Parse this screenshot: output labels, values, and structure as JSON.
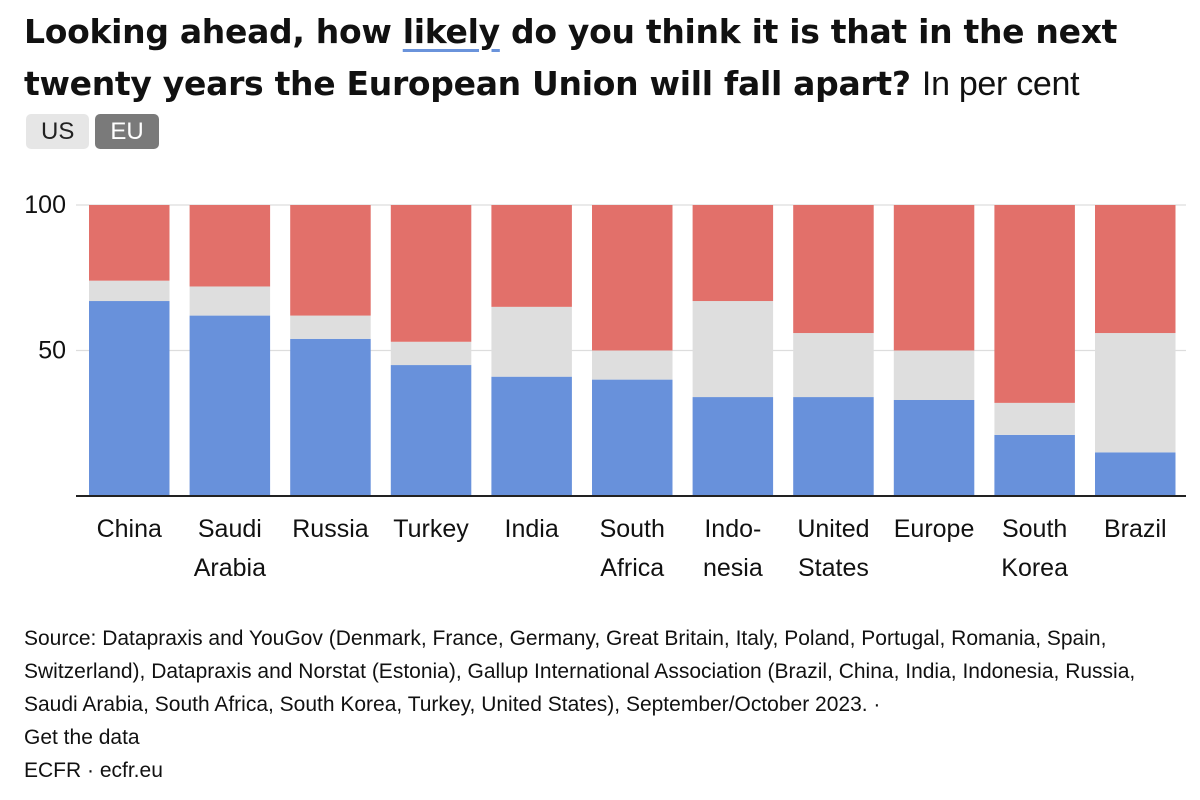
{
  "header": {
    "title_bold_1": "Looking ahead, how ",
    "title_highlight": "likely",
    "title_bold_2": " do you think it is that in the next twenty years the European Union will fall apart?",
    "subtitle": "In per cent"
  },
  "toggles": [
    {
      "label": "US",
      "selected": false
    },
    {
      "label": "EU",
      "selected": true
    }
  ],
  "colors": {
    "likely": "#6891db",
    "neither": "#dedede",
    "unlikely": "#e2706a",
    "toggle_selected": "#7a7a7a",
    "toggle_unselected": "#e6e6e6",
    "title_underline": "#6a93db"
  },
  "chart_data": {
    "type": "bar",
    "stacked": true,
    "ylim": [
      0,
      100
    ],
    "yticks": [
      "50",
      "100"
    ],
    "grid": true,
    "categories": [
      [
        "China"
      ],
      [
        "Saudi",
        "Arabia"
      ],
      [
        "Russia"
      ],
      [
        "Turkey"
      ],
      [
        "India"
      ],
      [
        "South",
        "Africa"
      ],
      [
        "Indo-",
        "nesia"
      ],
      [
        "United",
        "States"
      ],
      [
        "Europe"
      ],
      [
        "South",
        "Korea"
      ],
      [
        "Brazil"
      ]
    ],
    "series": [
      {
        "values": [
          67,
          62,
          54,
          45,
          41,
          40,
          34,
          34,
          33,
          21,
          15
        ]
      },
      {
        "values": [
          7,
          10,
          8,
          8,
          24,
          10,
          33,
          22,
          17,
          11,
          41
        ]
      },
      {
        "values": [
          26,
          28,
          38,
          47,
          35,
          50,
          33,
          44,
          50,
          68,
          44
        ]
      }
    ]
  },
  "footer": {
    "source": "Source: Datapraxis and YouGov (Denmark, France, Germany, Great Britain, Italy, Poland, Portugal, Romania, Spain, Switzerland), Datapraxis and Norstat (Estonia), Gallup International Association (Brazil, China, India, Indonesia, Russia, Saudi Arabia, South Africa, South Korea, Turkey, United States), September/October 2023. ·",
    "get_data": "Get the data",
    "credit": "ECFR · ecfr.eu"
  }
}
